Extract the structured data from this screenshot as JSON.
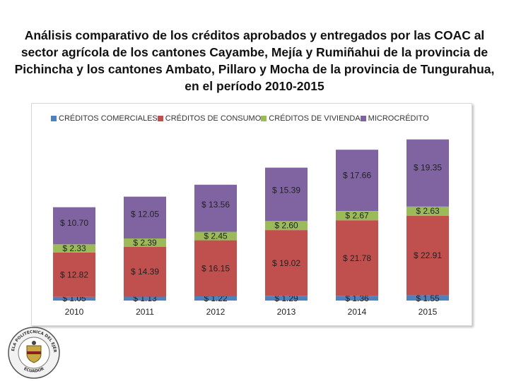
{
  "title": "Análisis comparativo de los créditos aprobados y entregados por las COAC al sector agrícola de los cantones Cayambe, Mejía y Rumiñahui de la provincia de Pichincha y los cantones Ambato, Pillaro y Mocha de la provincia de Tungurahua, en el período 2010-2015",
  "colors": {
    "comerciales": "#4F81BD",
    "consumo": "#C0504D",
    "vivienda": "#9BBB59",
    "microcredito": "#8064A2"
  },
  "chart_data": {
    "type": "bar",
    "stacked": true,
    "title": "Análisis comparativo de los créditos aprobados y entregados por las COAC al sector agrícola de los cantones Cayambe, Mejía y Rumiñahui de la provincia de Pichincha y los cantones Ambato, Pillaro y Mocha de la provincia de Tungurahua, en el período 2010-2015",
    "categories": [
      "2010",
      "2011",
      "2012",
      "2013",
      "2014",
      "2015"
    ],
    "series": [
      {
        "name": "CRÉDITOS COMERCIALES",
        "key": "comerciales",
        "values": [
          1.05,
          1.13,
          1.22,
          1.29,
          1.36,
          1.55
        ],
        "labels": [
          "$ 1.05",
          "$ 1.13",
          "$ 1.22",
          "$ 1.29",
          "$ 1.36",
          "$ 1.55"
        ]
      },
      {
        "name": "CRÉDITOS DE CONSUMO",
        "key": "consumo",
        "values": [
          12.82,
          14.39,
          16.15,
          19.02,
          21.78,
          22.91
        ],
        "labels": [
          "$ 12.82",
          "$ 14.39",
          "$ 16.15",
          "$ 19.02",
          "$ 21.78",
          "$ 22.91"
        ]
      },
      {
        "name": "CRÉDITOS DE VIVIENDA",
        "key": "vivienda",
        "values": [
          2.33,
          2.39,
          2.45,
          2.6,
          2.67,
          2.63
        ],
        "labels": [
          "$ 2.33",
          "$ 2.39",
          "$ 2.45",
          "$ 2.60",
          "$ 2.67",
          "$ 2.63"
        ]
      },
      {
        "name": "MICROCRÉDITO",
        "key": "microcredito",
        "values": [
          10.7,
          12.05,
          13.56,
          15.39,
          17.66,
          19.35
        ],
        "labels": [
          "$ 10.70",
          "$ 12.05",
          "$ 13.56",
          "$ 15.39",
          "$ 17.66",
          "$ 19.35"
        ]
      }
    ],
    "xlabel": "",
    "ylabel": "",
    "ylim": [
      0,
      46
    ],
    "grid": false,
    "legend": "top"
  },
  "logo": {
    "top_text": "ESCUELA POLITÉCNICA DEL EJÉRCITO",
    "bottom_text": "ECUADOR"
  }
}
